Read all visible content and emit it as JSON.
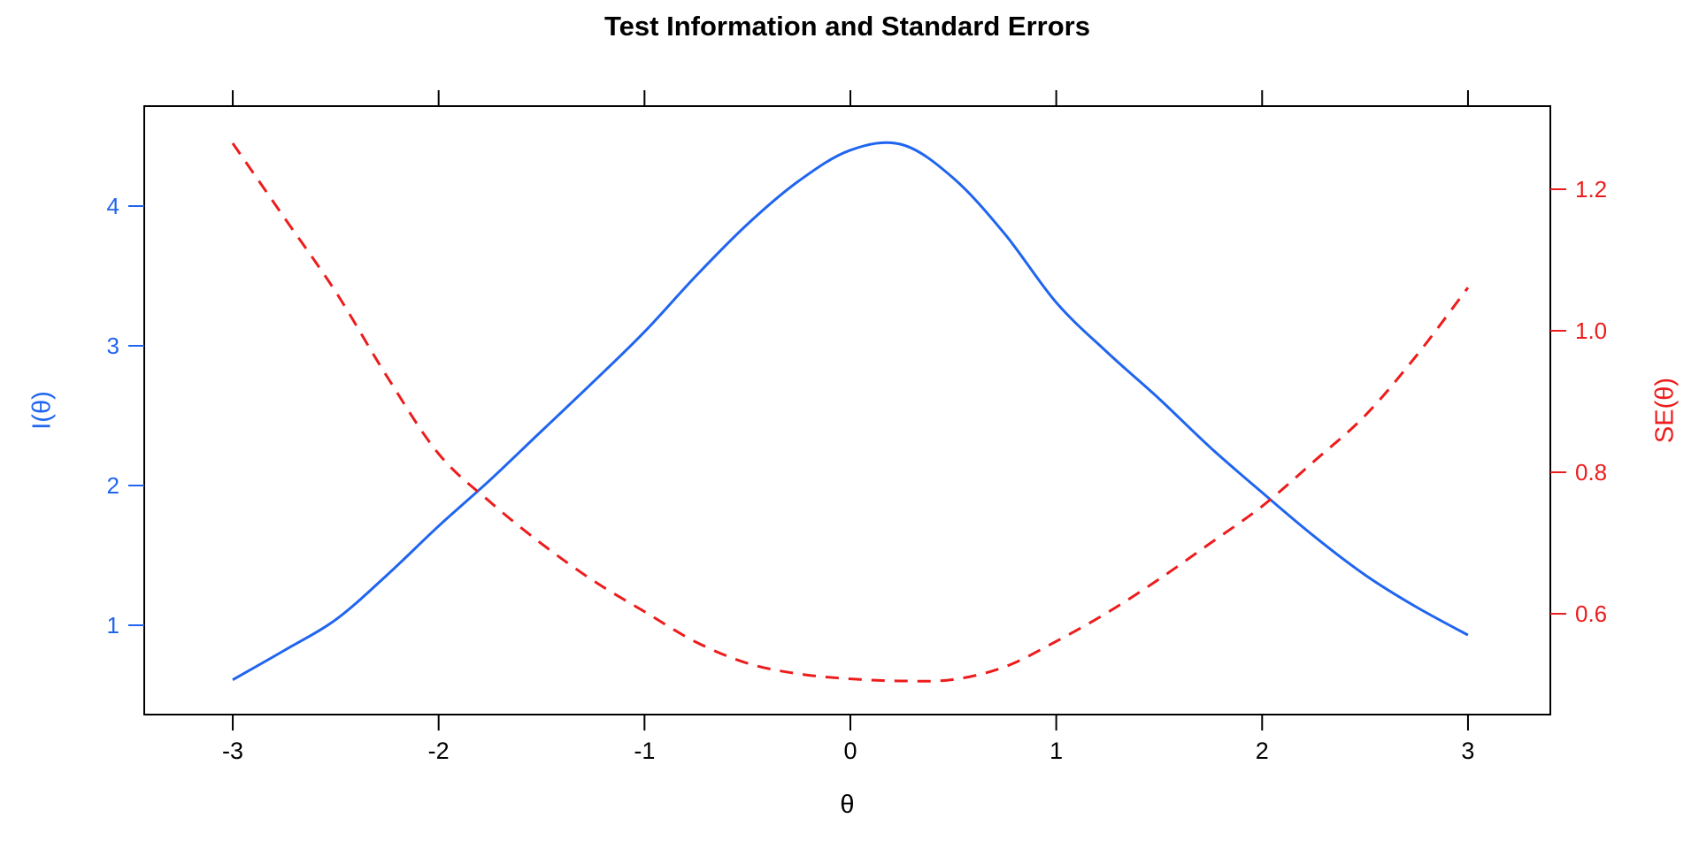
{
  "chart_data": {
    "type": "line",
    "title": "Test Information and Standard Errors",
    "xlabel": "θ",
    "ylabel_left": "I(θ)",
    "ylabel_right": "SE(θ)",
    "grid": false,
    "legend": "none",
    "xlim": [
      -3.43,
      3.4
    ],
    "ylim_left": [
      0.361,
      4.715
    ],
    "ylim_right": [
      0.4575,
      1.3175
    ],
    "x_tick_values": [
      -3,
      -2,
      -1,
      0,
      1,
      2,
      3
    ],
    "x_tick_labels": [
      "-3",
      "-2",
      "-1",
      "0",
      "1",
      "2",
      "3"
    ],
    "left_tick_values": [
      1,
      2,
      3,
      4
    ],
    "left_tick_labels": [
      "1",
      "2",
      "3",
      "4"
    ],
    "right_tick_values": [
      0.6,
      0.8,
      1.0,
      1.2
    ],
    "right_tick_labels": [
      "0.6",
      "0.8",
      "1.0",
      "1.2"
    ],
    "colors": {
      "frame": "#000000",
      "x_axis_text": "#000000",
      "information_series": "#2065F0",
      "standard_error_series": "#ED1C1C"
    },
    "x": [
      -3,
      -2.75,
      -2.5,
      -2.25,
      -2,
      -1.75,
      -1.5,
      -1.25,
      -1,
      -0.75,
      -0.5,
      -0.25,
      0,
      0.25,
      0.5,
      0.75,
      1,
      1.25,
      1.5,
      1.75,
      2,
      2.25,
      2.5,
      2.75,
      3
    ],
    "series": [
      {
        "name": "Test information I(θ)",
        "axis": "left",
        "line_style": "solid",
        "color": "#2065F0",
        "y": [
          0.61,
          0.82,
          1.04,
          1.36,
          1.71,
          2.04,
          2.39,
          2.74,
          3.1,
          3.5,
          3.87,
          4.18,
          4.4,
          4.44,
          4.2,
          3.8,
          3.31,
          2.95,
          2.62,
          2.27,
          1.95,
          1.64,
          1.36,
          1.13,
          0.93
        ]
      },
      {
        "name": "Standard error SE(θ)",
        "axis": "right",
        "line_style": "dashed",
        "color": "#ED1C1C",
        "y": [
          1.265,
          1.16,
          1.055,
          0.935,
          0.826,
          0.758,
          0.699,
          0.647,
          0.603,
          0.56,
          0.53,
          0.515,
          0.508,
          0.505,
          0.507,
          0.525,
          0.561,
          0.602,
          0.649,
          0.7,
          0.752,
          0.815,
          0.88,
          0.965,
          1.061
        ]
      }
    ]
  }
}
